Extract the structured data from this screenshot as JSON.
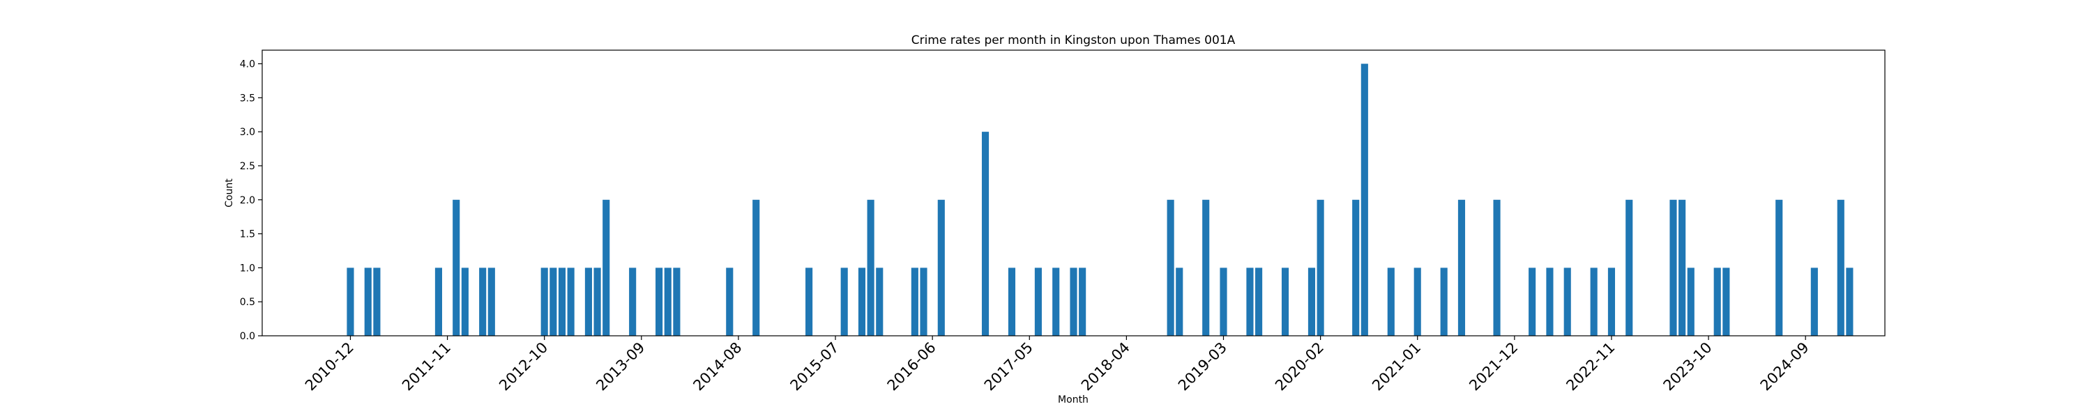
{
  "chart_data": {
    "type": "bar",
    "title": "Crime rates per month in Kingston upon Thames 001A",
    "xlabel": "Month",
    "ylabel": "Count",
    "ylim": [
      0,
      4.2
    ],
    "yticks": [
      "0.0",
      "0.5",
      "1.0",
      "1.5",
      "2.0",
      "2.5",
      "3.0",
      "3.5",
      "4.0"
    ],
    "xticks": [
      "2010-12",
      "2011-11",
      "2012-10",
      "2013-09",
      "2014-08",
      "2015-07",
      "2016-06",
      "2017-05",
      "2018-04",
      "2019-03",
      "2020-02",
      "2021-01",
      "2021-12",
      "2022-11",
      "2023-10",
      "2024-09"
    ],
    "x_range": [
      "2010-02",
      "2025-06"
    ],
    "grid": false,
    "bar_color": "#1f77b4",
    "x": [
      "2010-12",
      "2011-02",
      "2011-03",
      "2011-10",
      "2011-12",
      "2012-01",
      "2012-03",
      "2012-04",
      "2012-10",
      "2012-11",
      "2012-12",
      "2013-01",
      "2013-03",
      "2013-04",
      "2013-05",
      "2013-08",
      "2013-11",
      "2013-12",
      "2014-01",
      "2014-07",
      "2014-10",
      "2015-04",
      "2015-08",
      "2015-10",
      "2015-11",
      "2015-12",
      "2016-04",
      "2016-05",
      "2016-07",
      "2016-12",
      "2017-03",
      "2017-06",
      "2017-08",
      "2017-10",
      "2017-11",
      "2018-09",
      "2018-10",
      "2019-01",
      "2019-03",
      "2019-06",
      "2019-07",
      "2019-10",
      "2020-01",
      "2020-02",
      "2020-06",
      "2020-07",
      "2020-10",
      "2021-01",
      "2021-04",
      "2021-06",
      "2021-10",
      "2022-02",
      "2022-04",
      "2022-06",
      "2022-09",
      "2022-11",
      "2023-01",
      "2023-06",
      "2023-07",
      "2023-08",
      "2023-11",
      "2023-12",
      "2024-06",
      "2024-10",
      "2025-01",
      "2025-02"
    ],
    "values": [
      1,
      1,
      1,
      1,
      2,
      1,
      1,
      1,
      1,
      1,
      1,
      1,
      1,
      1,
      2,
      1,
      1,
      1,
      1,
      1,
      2,
      1,
      1,
      1,
      2,
      1,
      1,
      1,
      2,
      3,
      1,
      1,
      1,
      1,
      1,
      2,
      1,
      2,
      1,
      1,
      1,
      1,
      1,
      2,
      2,
      4,
      1,
      1,
      1,
      2,
      2,
      1,
      1,
      1,
      1,
      1,
      2,
      2,
      2,
      1,
      1,
      1,
      2,
      1,
      2,
      1
    ]
  }
}
